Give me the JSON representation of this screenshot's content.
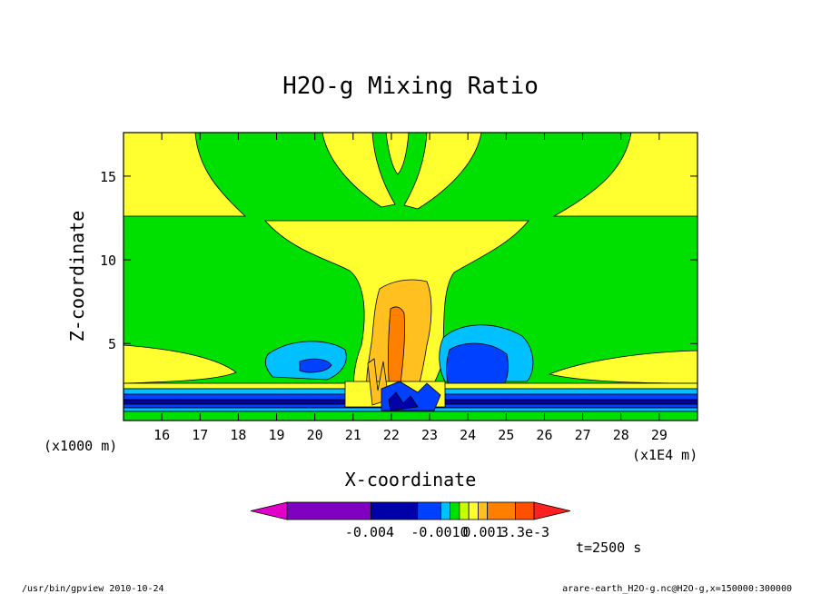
{
  "chart_data": {
    "type": "heatmap",
    "title": "H2O-g Mixing Ratio",
    "xlabel": "X-coordinate",
    "ylabel": "Z-coordinate",
    "x_unit": "(x1E4 m)",
    "y_unit": "(x1000 m)",
    "x_ticks": [
      16,
      17,
      18,
      19,
      20,
      21,
      22,
      23,
      24,
      25,
      26,
      27,
      28,
      29
    ],
    "y_ticks": [
      5,
      10,
      15
    ],
    "xlim": [
      15,
      30
    ],
    "ylim": [
      0.4,
      17.6
    ],
    "grid": false,
    "colorbar": {
      "labels": [
        "-0.004",
        "-0.0010",
        "0.001",
        "3.3e-3"
      ],
      "colors": [
        "#e000c8",
        "#8000c0",
        "#0000a8",
        "#0040ff",
        "#00c0ff",
        "#00e000",
        "#c8ff00",
        "#ffff30",
        "#ffc020",
        "#ff8000",
        "#ff5000",
        "#ff2020"
      ]
    },
    "annotation": "t=2500 s"
  },
  "footer": {
    "left": "/usr/bin/gpview  2010-10-24",
    "right": "arare-earth_H2O-g.nc@H2O-g,x=150000:300000"
  },
  "colors": {
    "green": "#00e000",
    "yellow": "#ffff30",
    "light_orange": "#ffc020",
    "orange": "#ff8000",
    "cyan": "#00c0ff",
    "blue": "#0040ff",
    "dark_blue": "#0000a8"
  }
}
